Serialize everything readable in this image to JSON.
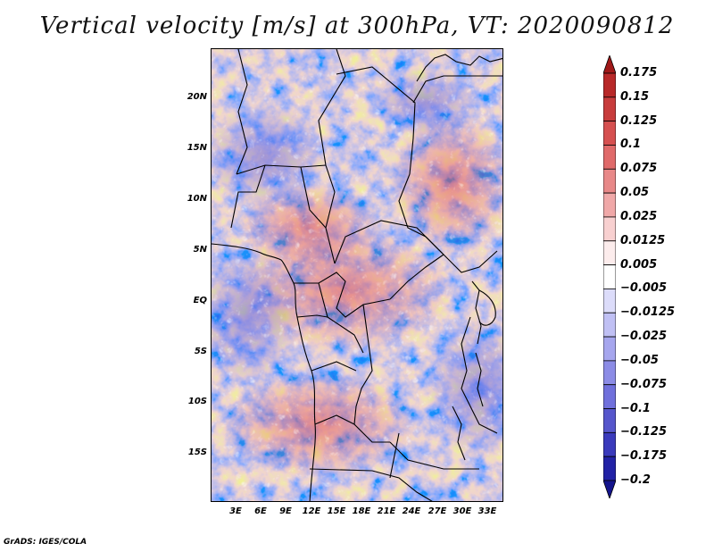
{
  "title": "Vertical velocity [m/s] at 300hPa, VT: 2020090812",
  "credit": "GrADS: IGES/COLA",
  "map": {
    "lat_ticks": [
      "20N",
      "15N",
      "10N",
      "5N",
      "EQ",
      "5S",
      "10S",
      "15S"
    ],
    "lon_ticks": [
      "3E",
      "6E",
      "9E",
      "12E",
      "15E",
      "18E",
      "21E",
      "24E",
      "27E",
      "30E",
      "33E"
    ]
  },
  "colorbar": {
    "labels": [
      "0.175",
      "0.15",
      "0.125",
      "0.1",
      "0.075",
      "0.05",
      "0.025",
      "0.0125",
      "0.005",
      "−0.005",
      "−0.0125",
      "−0.025",
      "−0.05",
      "−0.075",
      "−0.1",
      "−0.125",
      "−0.175",
      "−0.2"
    ],
    "colors": [
      "#a01818",
      "#b82828",
      "#c83c3c",
      "#d65050",
      "#e06a6a",
      "#e88888",
      "#f0a8a8",
      "#f8d0d0",
      "#fcecec",
      "#ffffff",
      "#dcdcfa",
      "#c0c0f4",
      "#a6a6ee",
      "#8c8ce6",
      "#7070dc",
      "#5656cc",
      "#3a3abc",
      "#2222a6",
      "#14148c"
    ]
  }
}
